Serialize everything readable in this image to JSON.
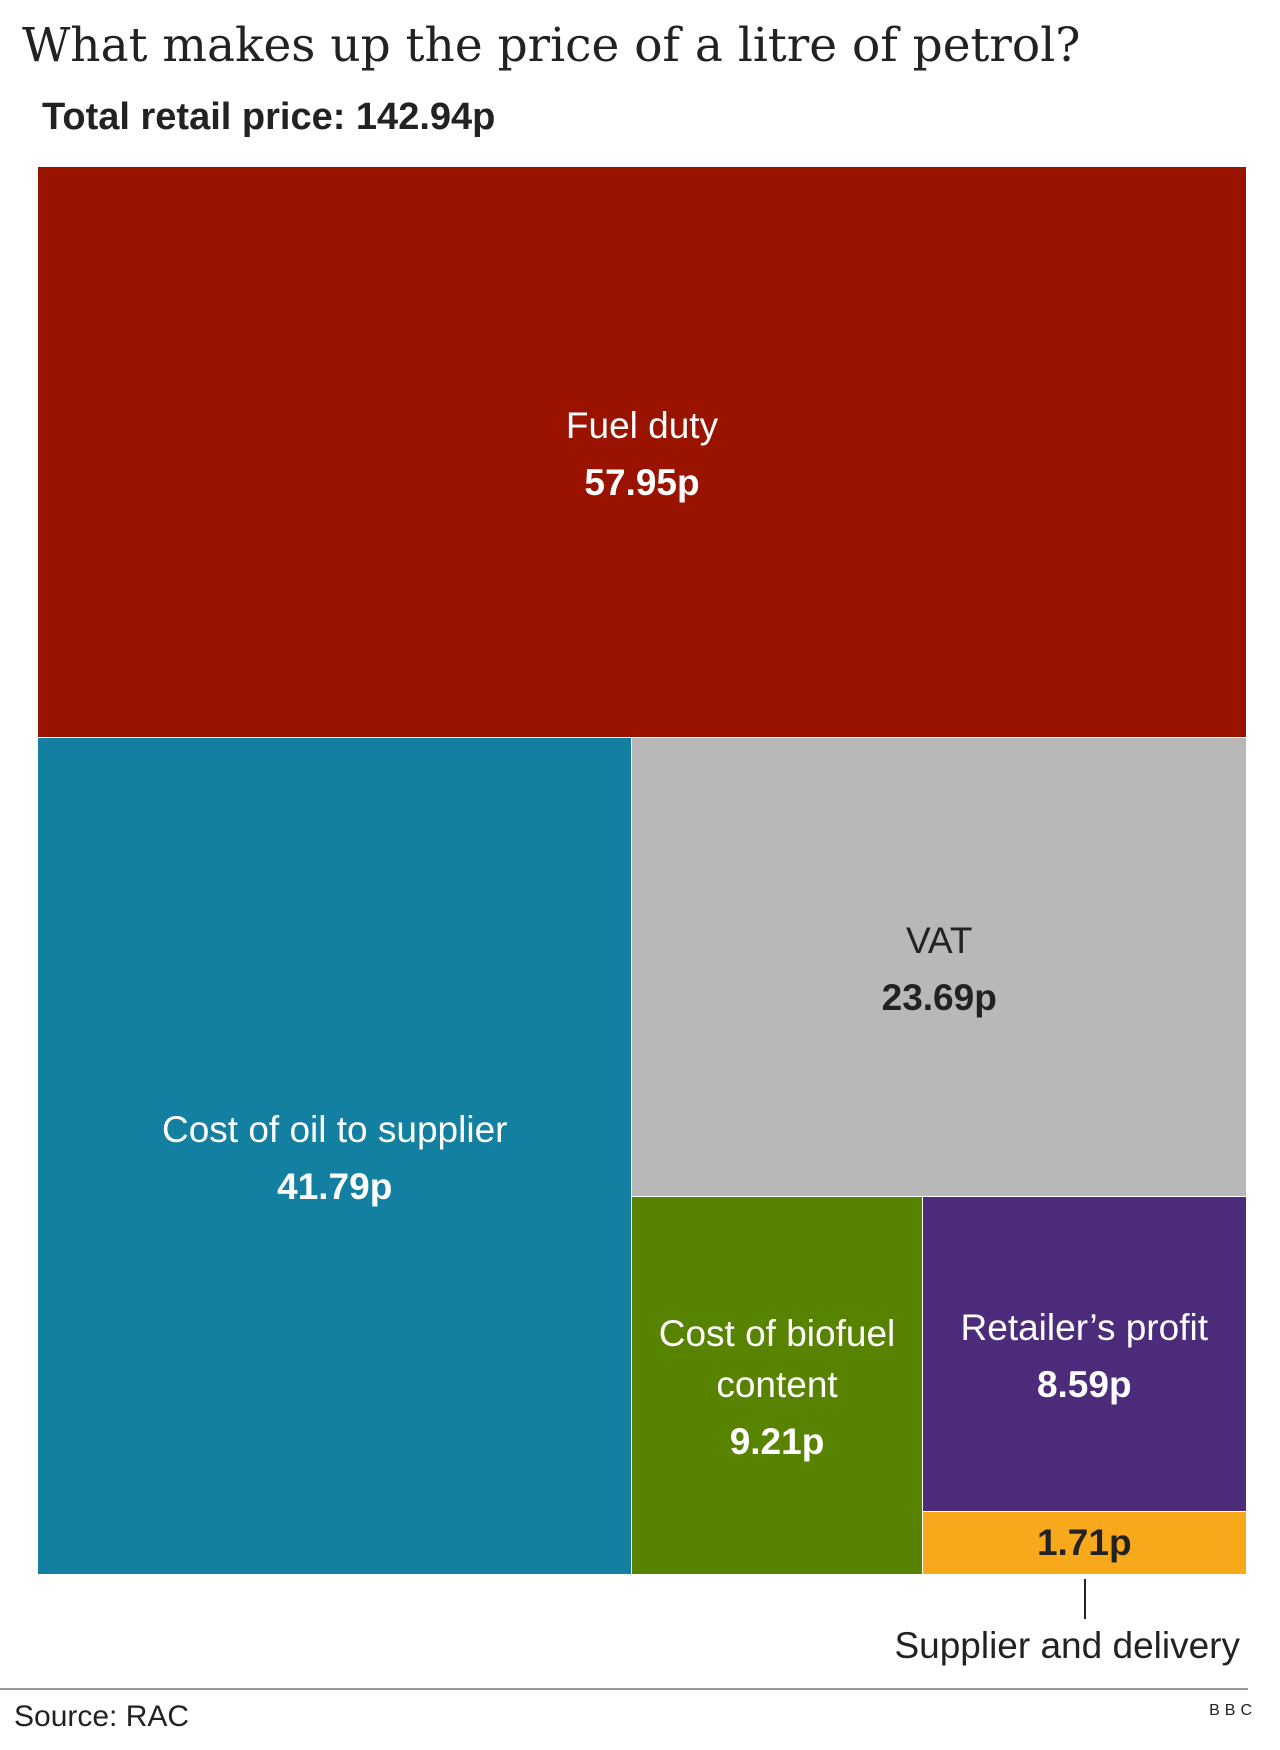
{
  "chart_data": {
    "type": "treemap",
    "title": "What makes up the price of a litre of petrol?",
    "subtitle": "Total retail price: 142.94p",
    "categories": [
      "Fuel duty",
      "Cost of oil to supplier",
      "VAT",
      "Cost of biofuel content",
      "Retailer’s profit",
      "Supplier and delivery"
    ],
    "values": [
      57.95,
      41.79,
      23.69,
      9.21,
      8.59,
      1.71
    ],
    "value_labels": [
      "57.95p",
      "41.79p",
      "23.69p",
      "9.21p",
      "8.59p",
      "1.71p"
    ],
    "colors": [
      "#9a1200",
      "#1380a1",
      "#b8b8b8",
      "#588300",
      "#4c2c7a",
      "#f8a81b"
    ],
    "source": "Source: RAC",
    "logo": [
      "B",
      "B",
      "C"
    ]
  }
}
